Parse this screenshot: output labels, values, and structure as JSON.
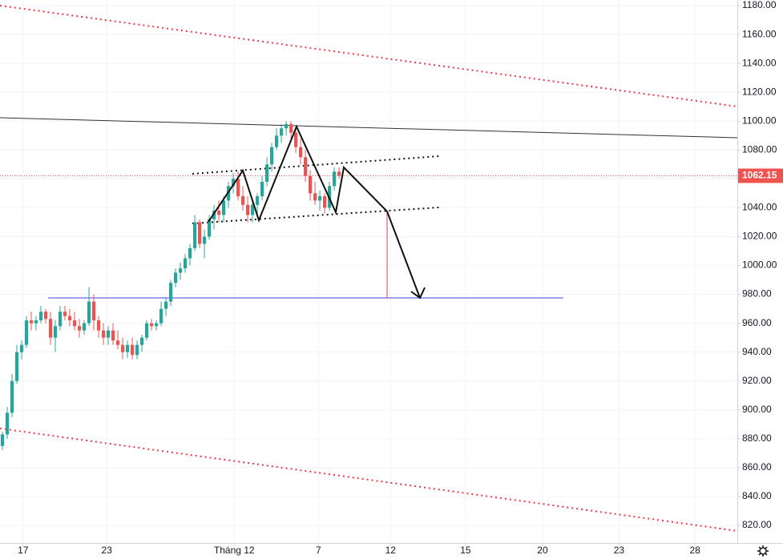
{
  "chart_data": {
    "type": "candlestick",
    "x": [
      0,
      1,
      2,
      3,
      4,
      5,
      6,
      7,
      8,
      9,
      10,
      11,
      12,
      13,
      14,
      15,
      16,
      17,
      18,
      19,
      20,
      21,
      22,
      23,
      24,
      25,
      26,
      27,
      28,
      29,
      30,
      31,
      32,
      33,
      34,
      35,
      36,
      37,
      38,
      39,
      40,
      41,
      42,
      43,
      44,
      45,
      46,
      47,
      48,
      49,
      50,
      51,
      52,
      53,
      54,
      55,
      56,
      57,
      58,
      59,
      60,
      61,
      62,
      63,
      64,
      65,
      66,
      67,
      68,
      69,
      70
    ],
    "open": [
      875,
      883,
      898,
      920,
      940,
      945,
      962,
      960,
      962,
      968,
      963,
      950,
      958,
      968,
      965,
      962,
      958,
      955,
      960,
      975,
      962,
      955,
      950,
      955,
      948,
      945,
      940,
      945,
      938,
      945,
      950,
      960,
      958,
      960,
      970,
      975,
      988,
      995,
      998,
      1005,
      1012,
      1030,
      1015,
      1020,
      1032,
      1038,
      1035,
      1045,
      1055,
      1060,
      1048,
      1042,
      1035,
      1042,
      1048,
      1058,
      1070,
      1082,
      1090,
      1095,
      1098,
      1092,
      1082,
      1075,
      1062,
      1050,
      1045,
      1048,
      1040,
      1055,
      1065
    ],
    "high": [
      885,
      902,
      925,
      945,
      948,
      965,
      968,
      965,
      972,
      970,
      968,
      962,
      972,
      972,
      970,
      968,
      963,
      962,
      985,
      980,
      965,
      960,
      958,
      960,
      955,
      950,
      948,
      950,
      948,
      952,
      962,
      963,
      962,
      975,
      978,
      990,
      998,
      1002,
      1008,
      1015,
      1035,
      1032,
      1025,
      1035,
      1042,
      1045,
      1048,
      1058,
      1064,
      1065,
      1055,
      1048,
      1045,
      1050,
      1062,
      1075,
      1085,
      1095,
      1098,
      1100,
      1100,
      1095,
      1088,
      1080,
      1066,
      1058,
      1052,
      1050,
      1058,
      1068,
      1068
    ],
    "low": [
      872,
      880,
      895,
      918,
      935,
      943,
      955,
      955,
      960,
      960,
      945,
      940,
      955,
      962,
      958,
      955,
      950,
      952,
      958,
      955,
      950,
      945,
      945,
      945,
      942,
      935,
      936,
      935,
      935,
      940,
      948,
      955,
      955,
      958,
      965,
      972,
      985,
      990,
      995,
      1000,
      1010,
      1012,
      1005,
      1018,
      1025,
      1030,
      1030,
      1040,
      1050,
      1045,
      1038,
      1030,
      1030,
      1035,
      1045,
      1055,
      1065,
      1080,
      1085,
      1090,
      1088,
      1078,
      1070,
      1058,
      1045,
      1042,
      1038,
      1036,
      1038,
      1052,
      1060
    ],
    "close": [
      883,
      898,
      920,
      940,
      945,
      962,
      960,
      962,
      968,
      963,
      950,
      958,
      968,
      965,
      962,
      958,
      955,
      960,
      975,
      962,
      955,
      950,
      955,
      948,
      945,
      940,
      945,
      938,
      945,
      950,
      960,
      958,
      960,
      970,
      975,
      988,
      995,
      998,
      1005,
      1012,
      1030,
      1015,
      1020,
      1032,
      1038,
      1035,
      1045,
      1055,
      1060,
      1048,
      1042,
      1035,
      1042,
      1048,
      1058,
      1070,
      1082,
      1090,
      1095,
      1098,
      1092,
      1082,
      1075,
      1062,
      1050,
      1045,
      1048,
      1040,
      1055,
      1065,
      1062.15
    ],
    "up_color": "#26a69a",
    "down_color": "#ef5350",
    "last_price": {
      "value": 1062.15,
      "label": "1062.15"
    },
    "xlim": [
      -0.5,
      152.8
    ],
    "xticks": [
      {
        "value": 4.3,
        "label": "17"
      },
      {
        "value": 21.7,
        "label": "23"
      },
      {
        "value": 48.2,
        "label": "Tháng 12"
      },
      {
        "value": 65.7,
        "label": "7"
      },
      {
        "value": 80.7,
        "label": "12"
      },
      {
        "value": 96.3,
        "label": "15"
      },
      {
        "value": 112.3,
        "label": "20"
      },
      {
        "value": 128.2,
        "label": "23"
      },
      {
        "value": 144,
        "label": "28"
      }
    ],
    "ylim": [
      807.8,
      1183.9
    ],
    "yticks": [
      {
        "value": 820,
        "label": "820.00"
      },
      {
        "value": 840,
        "label": "840.00"
      },
      {
        "value": 860,
        "label": "860.00"
      },
      {
        "value": 880,
        "label": "880.00"
      },
      {
        "value": 900,
        "label": "900.00"
      },
      {
        "value": 920,
        "label": "920.00"
      },
      {
        "value": 940,
        "label": "940.00"
      },
      {
        "value": 960,
        "label": "960.00"
      },
      {
        "value": 980,
        "label": "980.00"
      },
      {
        "value": 1000,
        "label": "1000.00"
      },
      {
        "value": 1020,
        "label": "1020.00"
      },
      {
        "value": 1040,
        "label": "1040.00"
      },
      {
        "value": 1060,
        "label": "1060.00"
      },
      {
        "value": 1080,
        "label": "1080.00"
      },
      {
        "value": 1100,
        "label": "1100.00"
      },
      {
        "value": 1120,
        "label": "1120.00"
      },
      {
        "value": 1140,
        "label": "1140.00"
      },
      {
        "value": 1160,
        "label": "1160.00"
      },
      {
        "value": 1180,
        "label": "1180.00"
      }
    ],
    "grid": true
  }
}
